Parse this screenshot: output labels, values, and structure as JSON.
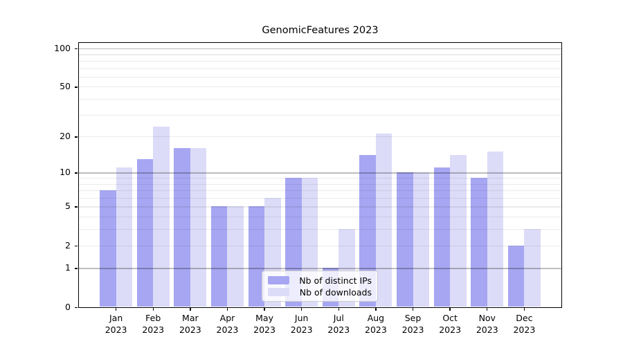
{
  "title": "GenomicFeatures 2023",
  "chart_data": {
    "type": "bar",
    "title": "GenomicFeatures 2023",
    "categories": [
      "Jan 2023",
      "Feb 2023",
      "Mar 2023",
      "Apr 2023",
      "May 2023",
      "Jun 2023",
      "Jul 2023",
      "Aug 2023",
      "Sep 2023",
      "Oct 2023",
      "Nov 2023",
      "Dec 2023"
    ],
    "series": [
      {
        "name": "Nb of distinct IPs",
        "color": "#a6a6f2",
        "values": [
          7,
          13,
          16,
          5,
          5,
          9,
          1,
          14,
          10,
          11,
          9,
          2
        ]
      },
      {
        "name": "Nb of downloads",
        "color": "#dcdcf8",
        "values": [
          11,
          24,
          16,
          5,
          6,
          9,
          3,
          21,
          10,
          14,
          15,
          3
        ]
      }
    ],
    "xlabel": "",
    "ylabel": "",
    "yscale": "log1p",
    "ylim": [
      0,
      110.5
    ],
    "yticks": [
      0,
      1,
      2,
      5,
      10,
      20,
      50,
      100
    ],
    "minor_yticks": [
      3,
      4,
      6,
      7,
      8,
      9,
      30,
      40,
      60,
      70,
      80,
      90
    ],
    "major_grid_at": [
      1,
      10,
      100
    ],
    "grid": "horizontal, drawn over bars",
    "legend_position": "lower center"
  },
  "colors": {
    "ips_bar": "#a6a6f2",
    "downloads_bar": "#dcdcf8",
    "major_grid": "#c4c4c4",
    "minor_grid": "#ebebeb",
    "axis": "#000000",
    "background": "#ffffff",
    "legend_border": "#cccccc"
  }
}
